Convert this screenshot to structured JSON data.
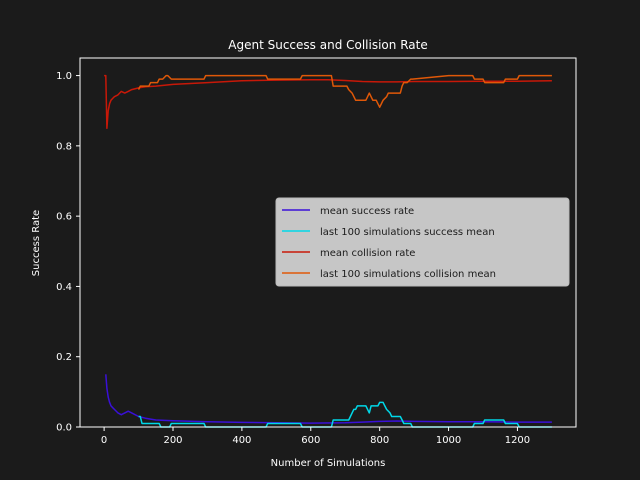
{
  "chart_data": {
    "type": "line",
    "title": "Agent Success and Collision Rate",
    "xlabel": "Number of Simulations",
    "ylabel": "Success Rate",
    "xlim": [
      -70,
      1370
    ],
    "ylim": [
      0.0,
      1.05
    ],
    "xticks": [
      0,
      200,
      400,
      600,
      800,
      1000,
      1200
    ],
    "yticks": [
      0.0,
      0.2,
      0.4,
      0.6,
      0.8,
      1.0
    ],
    "xtick_labels": [
      "0",
      "200",
      "400",
      "600",
      "800",
      "1000",
      "1200"
    ],
    "ytick_labels": [
      "0.0",
      "0.2",
      "0.4",
      "0.6",
      "0.8",
      "1.0"
    ],
    "grid": false,
    "legend_placement": "center-right",
    "background": "#1b1b1b",
    "series": [
      {
        "name": "mean success rate",
        "color": "#3a10d8",
        "x": [
          5,
          8,
          12,
          16,
          20,
          25,
          30,
          40,
          50,
          60,
          70,
          80,
          100,
          120,
          150,
          200,
          300,
          400,
          500,
          600,
          700,
          750,
          800,
          850,
          900,
          1000,
          1100,
          1200,
          1300
        ],
        "y": [
          0.15,
          0.11,
          0.085,
          0.07,
          0.06,
          0.055,
          0.05,
          0.04,
          0.035,
          0.04,
          0.045,
          0.04,
          0.03,
          0.025,
          0.02,
          0.018,
          0.015,
          0.013,
          0.012,
          0.011,
          0.012,
          0.014,
          0.016,
          0.017,
          0.016,
          0.015,
          0.015,
          0.014,
          0.014
        ]
      },
      {
        "name": "last 100 simulations success mean",
        "color": "#00d8e8",
        "x": [
          100,
          105,
          110,
          160,
          165,
          190,
          195,
          290,
          295,
          470,
          475,
          570,
          575,
          660,
          665,
          710,
          715,
          720,
          725,
          730,
          735,
          740,
          760,
          765,
          770,
          775,
          795,
          800,
          810,
          815,
          820,
          830,
          835,
          860,
          865,
          870,
          875,
          890,
          895,
          1000,
          1070,
          1075,
          1100,
          1105,
          1160,
          1165,
          1200,
          1205,
          1300
        ],
        "y": [
          0.03,
          0.03,
          0.01,
          0.01,
          0.0,
          0.0,
          0.01,
          0.01,
          0.0,
          0.0,
          0.01,
          0.01,
          0.0,
          0.0,
          0.02,
          0.02,
          0.03,
          0.04,
          0.05,
          0.05,
          0.06,
          0.06,
          0.06,
          0.05,
          0.04,
          0.06,
          0.06,
          0.07,
          0.07,
          0.06,
          0.05,
          0.04,
          0.03,
          0.03,
          0.02,
          0.01,
          0.01,
          0.01,
          0.0,
          0.0,
          0.0,
          0.01,
          0.01,
          0.02,
          0.02,
          0.01,
          0.01,
          0.0,
          0.0
        ]
      },
      {
        "name": "mean collision rate",
        "color": "#c81808",
        "x": [
          0,
          5,
          8,
          12,
          16,
          20,
          25,
          30,
          40,
          50,
          60,
          70,
          80,
          100,
          120,
          150,
          200,
          300,
          400,
          500,
          600,
          650,
          700,
          750,
          800,
          850,
          900,
          1000,
          1100,
          1200,
          1300
        ],
        "y": [
          1.0,
          1.0,
          0.85,
          0.9,
          0.92,
          0.93,
          0.935,
          0.94,
          0.945,
          0.955,
          0.95,
          0.955,
          0.96,
          0.965,
          0.968,
          0.97,
          0.975,
          0.98,
          0.985,
          0.987,
          0.988,
          0.988,
          0.986,
          0.983,
          0.982,
          0.982,
          0.983,
          0.983,
          0.984,
          0.984,
          0.985
        ]
      },
      {
        "name": "last 100 simulations collision mean",
        "color": "#e05808",
        "x": [
          100,
          105,
          130,
          135,
          155,
          160,
          170,
          180,
          185,
          195,
          290,
          295,
          470,
          475,
          570,
          575,
          660,
          665,
          705,
          710,
          720,
          730,
          760,
          765,
          770,
          780,
          790,
          795,
          800,
          805,
          810,
          820,
          825,
          860,
          865,
          870,
          880,
          890,
          895,
          1000,
          1070,
          1075,
          1100,
          1105,
          1160,
          1165,
          1200,
          1205,
          1300
        ],
        "y": [
          0.96,
          0.97,
          0.97,
          0.98,
          0.98,
          0.99,
          0.99,
          1.0,
          1.0,
          0.99,
          0.99,
          1.0,
          1.0,
          0.99,
          0.99,
          1.0,
          1.0,
          0.97,
          0.97,
          0.96,
          0.95,
          0.93,
          0.93,
          0.94,
          0.95,
          0.93,
          0.93,
          0.92,
          0.91,
          0.92,
          0.93,
          0.94,
          0.95,
          0.95,
          0.97,
          0.98,
          0.98,
          0.99,
          0.99,
          1.0,
          1.0,
          0.99,
          0.99,
          0.98,
          0.98,
          0.99,
          0.99,
          1.0,
          1.0
        ]
      }
    ]
  }
}
